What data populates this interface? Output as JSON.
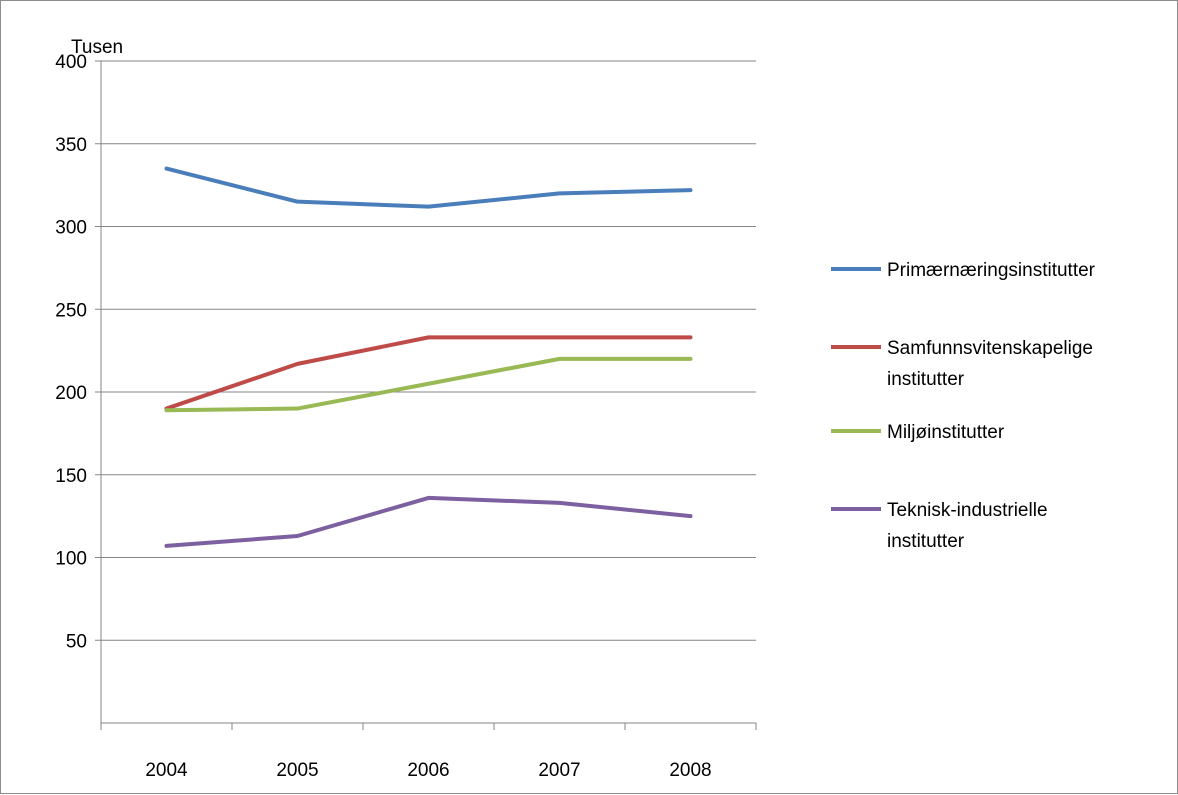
{
  "chart_data": {
    "type": "line",
    "title": "",
    "xlabel": "",
    "ylabel": "",
    "unit_label": "Tusen",
    "categories": [
      "2004",
      "2005",
      "2006",
      "2007",
      "2008"
    ],
    "ylim": [
      0,
      400
    ],
    "yticks": [
      50,
      100,
      150,
      200,
      250,
      300,
      350,
      400
    ],
    "grid": "horizontal",
    "legend_position": "right",
    "series": [
      {
        "name": "Primærnæringsinstitutter",
        "name_lines": [
          "Primærnæringsinstitutter"
        ],
        "color": "#4a7ebb",
        "values": [
          335,
          315,
          312,
          320,
          322
        ]
      },
      {
        "name": "Samfunnsvitenskapelige institutter",
        "name_lines": [
          "Samfunnsvitenskapelige",
          "institutter"
        ],
        "color": "#be4b48",
        "values": [
          190,
          217,
          233,
          233,
          233
        ]
      },
      {
        "name": "Miljøinstitutter",
        "name_lines": [
          "Miljøinstitutter"
        ],
        "color": "#98b954",
        "values": [
          189,
          190,
          205,
          220,
          220
        ]
      },
      {
        "name": "Teknisk-industrielle institutter",
        "name_lines": [
          "Teknisk-industrielle",
          "institutter"
        ],
        "color": "#7d60a0",
        "values": [
          107,
          113,
          136,
          133,
          125
        ]
      }
    ]
  }
}
